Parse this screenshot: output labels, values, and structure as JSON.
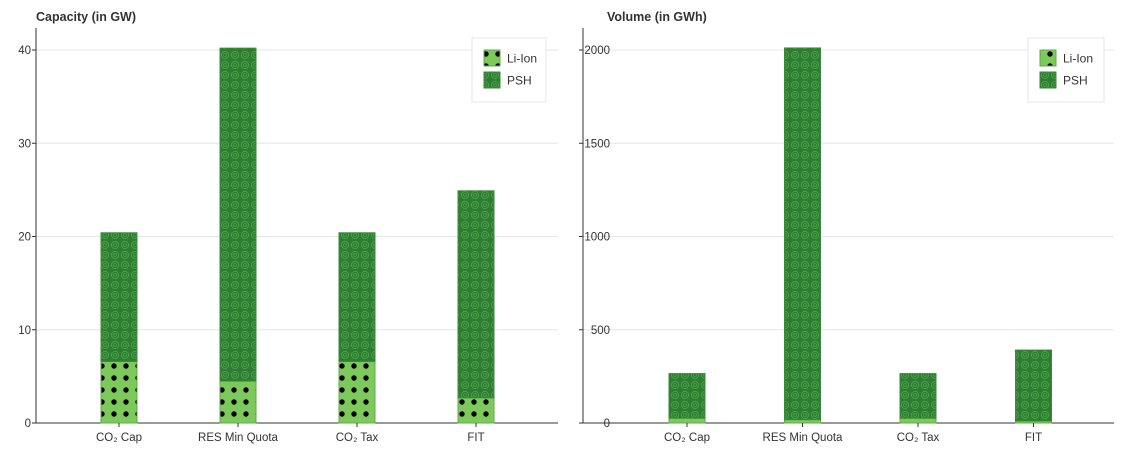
{
  "colors": {
    "li_ion": "#7dc95c",
    "psh": "#2e7d32",
    "psh_pattern": "#4aa04a",
    "li_ion_dots": "#000000",
    "grid": "#e6e6e6",
    "axis": "#333333"
  },
  "chart_data": [
    {
      "type": "bar",
      "stacked": true,
      "title": "Capacity (in GW)",
      "categories": [
        "CO₂ Cap",
        "RES Min Quota",
        "CO₂ Tax",
        "FIT"
      ],
      "series": [
        {
          "name": "Li-Ion",
          "pattern": "dots",
          "values": [
            6.6,
            4.5,
            6.6,
            2.7
          ]
        },
        {
          "name": "PSH",
          "pattern": "circles",
          "values": [
            13.8,
            35.7,
            13.8,
            22.2
          ]
        }
      ],
      "ylim": [
        0,
        42
      ],
      "yticks": [
        0,
        10,
        20,
        30,
        40
      ],
      "grid": true,
      "legend": "top-right"
    },
    {
      "type": "bar",
      "stacked": true,
      "title": "Volume (in GWh)",
      "categories": [
        "CO₂ Cap",
        "RES Min Quota",
        "CO₂ Tax",
        "FIT"
      ],
      "series": [
        {
          "name": "Li-Ion",
          "pattern": "dots",
          "values": [
            26,
            18,
            26,
            11
          ]
        },
        {
          "name": "PSH",
          "pattern": "circles",
          "values": [
            239,
            1993,
            239,
            380
          ]
        }
      ],
      "ylim": [
        0,
        2100
      ],
      "yticks": [
        0,
        500,
        1000,
        1500,
        2000
      ],
      "grid": true,
      "legend": "top-right"
    }
  ]
}
